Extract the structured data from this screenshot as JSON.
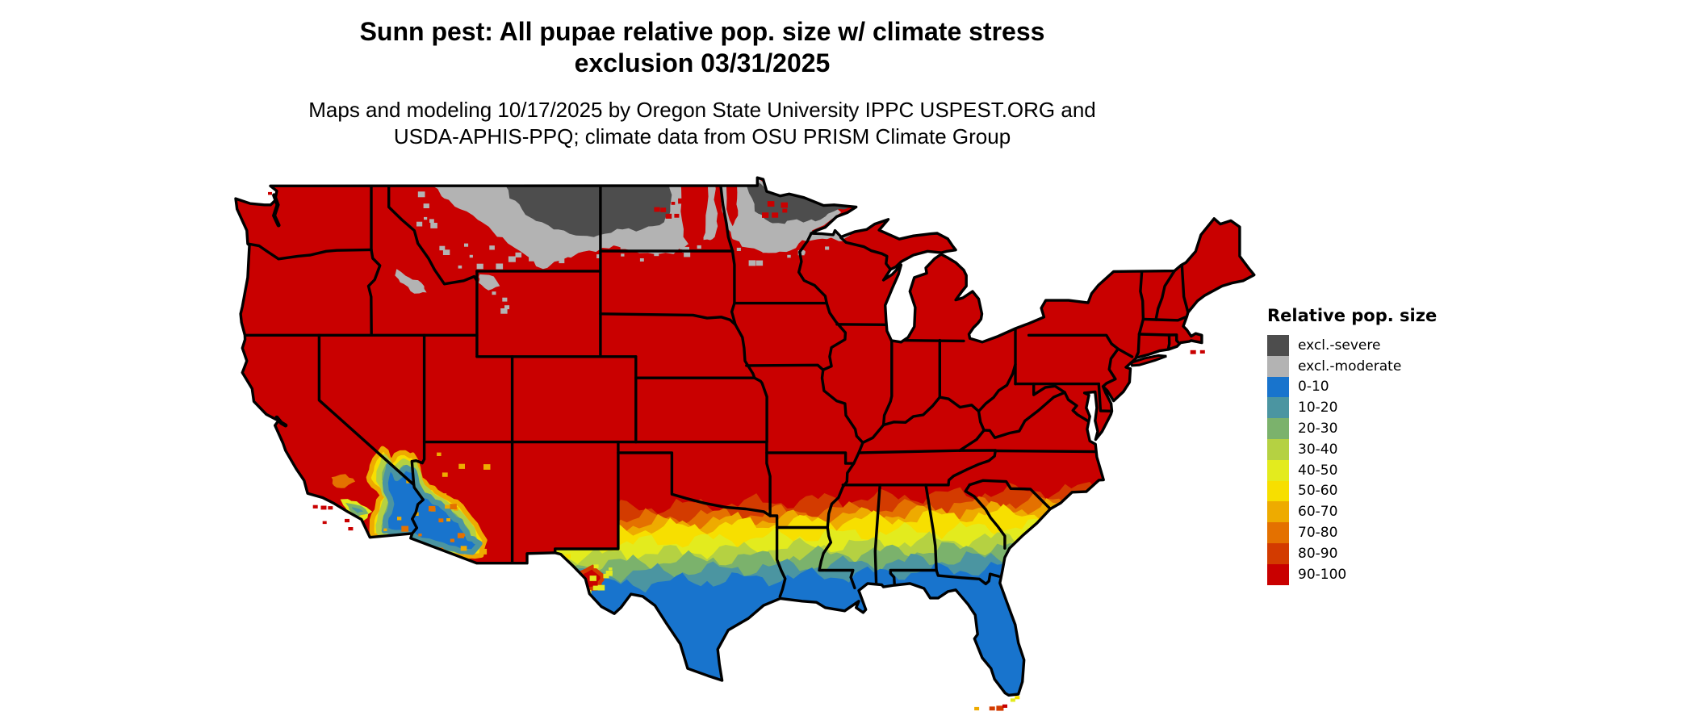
{
  "header": {
    "title_line1": "Sunn pest: All pupae relative pop. size w/ climate stress",
    "title_line2": "exclusion 03/31/2025",
    "subtitle_line1": "Maps and modeling 10/17/2025 by Oregon State University IPPC USPEST.ORG and",
    "subtitle_line2": "USDA-APHIS-PPQ; climate data from OSU PRISM Climate Group"
  },
  "legend": {
    "title": "Relative pop. size",
    "entries": [
      {
        "label": "excl.-severe",
        "color": "#4D4D4D"
      },
      {
        "label": "excl.-moderate",
        "color": "#B3B3B3"
      },
      {
        "label": "0-10",
        "color": "#1874CD"
      },
      {
        "label": "10-20",
        "color": "#4B95A1"
      },
      {
        "label": "20-30",
        "color": "#7BB26C"
      },
      {
        "label": "30-40",
        "color": "#B5D142"
      },
      {
        "label": "40-50",
        "color": "#E3EB1E"
      },
      {
        "label": "50-60",
        "color": "#F7DF00"
      },
      {
        "label": "60-70",
        "color": "#EEAB00"
      },
      {
        "label": "70-80",
        "color": "#E47100"
      },
      {
        "label": "80-90",
        "color": "#D33B00"
      },
      {
        "label": "90-100",
        "color": "#C90000"
      }
    ]
  },
  "map": {
    "region": "contiguous United States",
    "base_class": "90-100",
    "border_color": "#000000",
    "water_color": "#FFFFFF"
  }
}
